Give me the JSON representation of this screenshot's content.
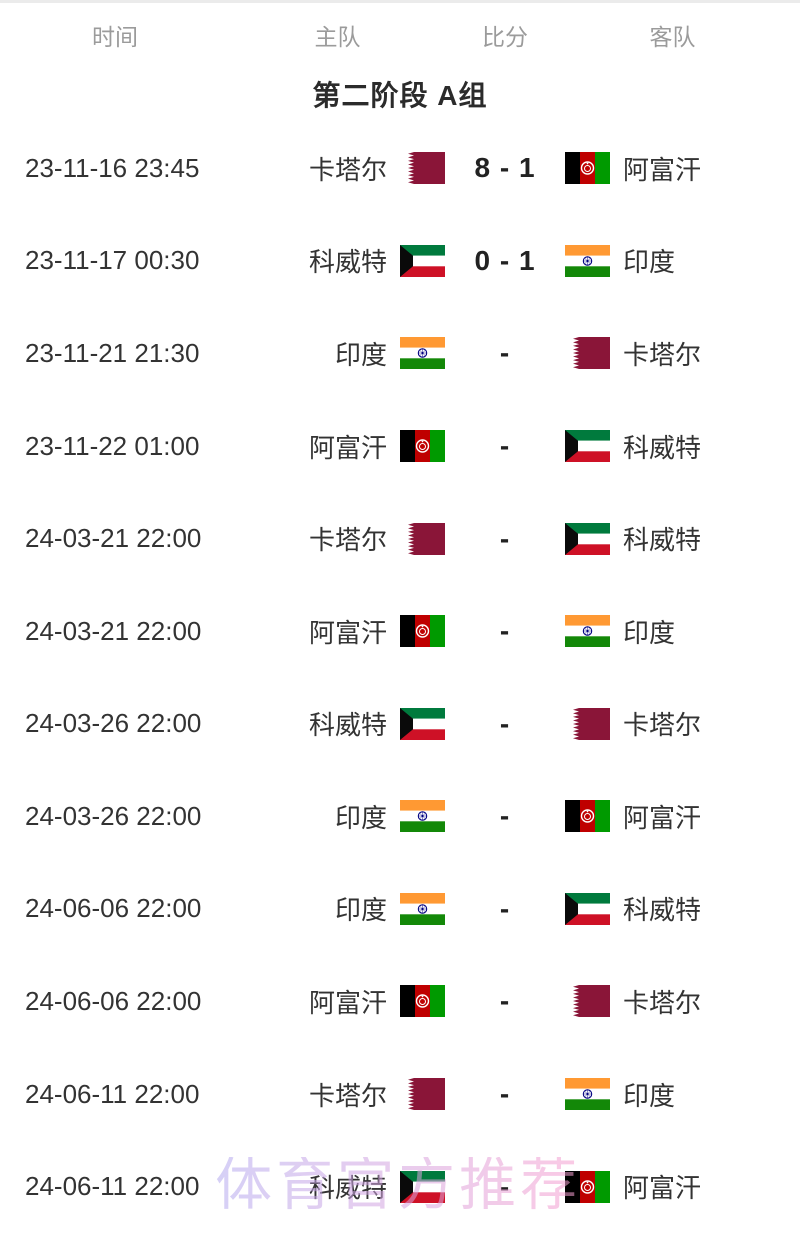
{
  "table": {
    "columns": [
      {
        "id": "time",
        "label": "时间"
      },
      {
        "id": "home",
        "label": "主队"
      },
      {
        "id": "score",
        "label": "比分"
      },
      {
        "id": "away",
        "label": "客队"
      }
    ],
    "section_title": "第二阶段 A组",
    "matches": [
      {
        "time": "23-11-16 23:45",
        "home": {
          "name": "卡塔尔",
          "flag": "qatar"
        },
        "score": "8 - 1",
        "away": {
          "name": "阿富汗",
          "flag": "afghanistan"
        }
      },
      {
        "time": "23-11-17 00:30",
        "home": {
          "name": "科威特",
          "flag": "kuwait"
        },
        "score": "0 - 1",
        "away": {
          "name": "印度",
          "flag": "india"
        }
      },
      {
        "time": "23-11-21 21:30",
        "home": {
          "name": "印度",
          "flag": "india"
        },
        "score": "-",
        "away": {
          "name": "卡塔尔",
          "flag": "qatar"
        }
      },
      {
        "time": "23-11-22 01:00",
        "home": {
          "name": "阿富汗",
          "flag": "afghanistan"
        },
        "score": "-",
        "away": {
          "name": "科威特",
          "flag": "kuwait"
        }
      },
      {
        "time": "24-03-21 22:00",
        "home": {
          "name": "卡塔尔",
          "flag": "qatar"
        },
        "score": "-",
        "away": {
          "name": "科威特",
          "flag": "kuwait"
        }
      },
      {
        "time": "24-03-21 22:00",
        "home": {
          "name": "阿富汗",
          "flag": "afghanistan"
        },
        "score": "-",
        "away": {
          "name": "印度",
          "flag": "india"
        }
      },
      {
        "time": "24-03-26 22:00",
        "home": {
          "name": "科威特",
          "flag": "kuwait"
        },
        "score": "-",
        "away": {
          "name": "卡塔尔",
          "flag": "qatar"
        }
      },
      {
        "time": "24-03-26 22:00",
        "home": {
          "name": "印度",
          "flag": "india"
        },
        "score": "-",
        "away": {
          "name": "阿富汗",
          "flag": "afghanistan"
        }
      },
      {
        "time": "24-06-06 22:00",
        "home": {
          "name": "印度",
          "flag": "india"
        },
        "score": "-",
        "away": {
          "name": "科威特",
          "flag": "kuwait"
        }
      },
      {
        "time": "24-06-06 22:00",
        "home": {
          "name": "阿富汗",
          "flag": "afghanistan"
        },
        "score": "-",
        "away": {
          "name": "卡塔尔",
          "flag": "qatar"
        }
      },
      {
        "time": "24-06-11 22:00",
        "home": {
          "name": "卡塔尔",
          "flag": "qatar"
        },
        "score": "-",
        "away": {
          "name": "印度",
          "flag": "india"
        }
      },
      {
        "time": "24-06-11 22:00",
        "home": {
          "name": "科威特",
          "flag": "kuwait"
        },
        "score": "-",
        "away": {
          "name": "阿富汗",
          "flag": "afghanistan"
        }
      }
    ]
  },
  "watermark": {
    "text": "体育官方推荐",
    "color_start": "#b5aaf0",
    "color_end": "#f79fd0"
  },
  "flags": {
    "qatar": {
      "maroon": "#8a1538",
      "white": "#ffffff"
    },
    "afghanistan": {
      "black": "#000000",
      "red": "#bf0000",
      "green": "#009a00",
      "emblem": "#ffffff"
    },
    "kuwait": {
      "green": "#007a3d",
      "white": "#ffffff",
      "red": "#ce1126",
      "black": "#0a0a0a"
    },
    "india": {
      "saffron": "#ff9933",
      "white": "#ffffff",
      "green": "#138808",
      "navy": "#000080"
    }
  },
  "colors": {
    "background": "#ffffff",
    "top_border": "#ebebeb",
    "header_text": "#9b9b9b",
    "title_text": "#2b2b2b",
    "row_text": "#333333",
    "score_text": "#222222"
  }
}
